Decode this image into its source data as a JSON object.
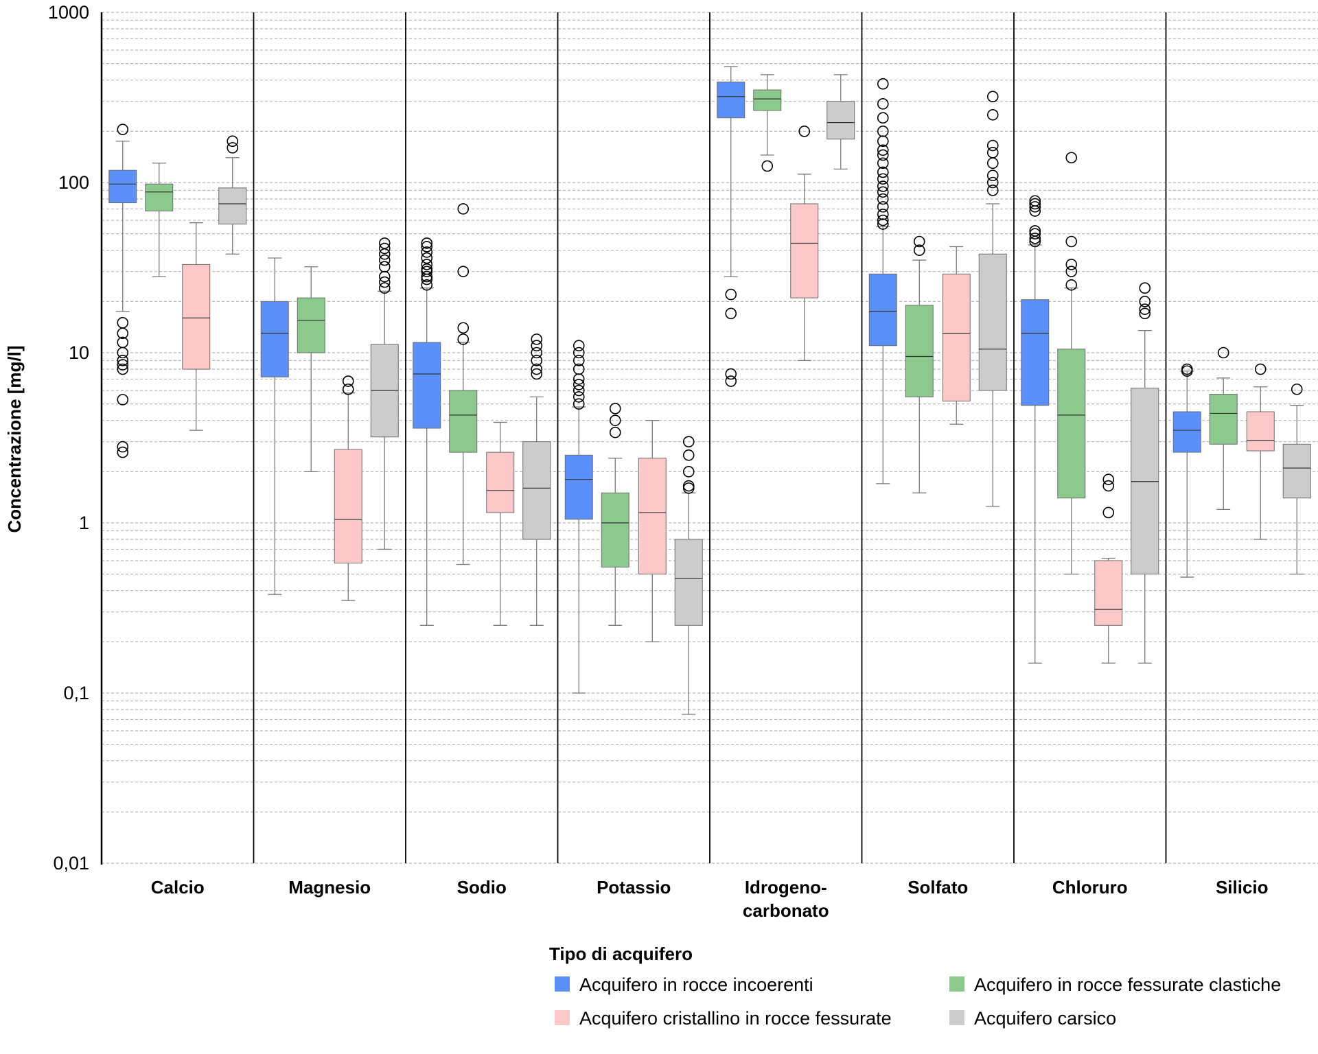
{
  "chart_data": {
    "type": "box",
    "ylabel": "Concentrazione [mg/l]",
    "yscale": "log",
    "ylim": [
      0.01,
      1000
    ],
    "yticks": [
      {
        "value": 1000,
        "label": "1000"
      },
      {
        "value": 100,
        "label": "100"
      },
      {
        "value": 10,
        "label": "10"
      },
      {
        "value": 1,
        "label": "1"
      },
      {
        "value": 0.1,
        "label": "0,1"
      },
      {
        "value": 0.01,
        "label": "0,01"
      }
    ],
    "grid": "dashed minor gridlines",
    "categories": [
      {
        "lines": [
          "Calcio"
        ]
      },
      {
        "lines": [
          "Magnesio"
        ]
      },
      {
        "lines": [
          "Sodio"
        ]
      },
      {
        "lines": [
          "Potassio"
        ]
      },
      {
        "lines": [
          "Idrogeno-",
          "carbonato"
        ]
      },
      {
        "lines": [
          "Solfato"
        ]
      },
      {
        "lines": [
          "Chloruro"
        ]
      },
      {
        "lines": [
          "Silicio"
        ]
      }
    ],
    "legend": {
      "title": "Tipo di acquifero",
      "placement": "bottom-center"
    },
    "series": [
      {
        "name": "Acquifero in rocce incoerenti",
        "color": "#5b8ff9",
        "boxes": [
          {
            "whisker_low": 17.5,
            "q1": 76,
            "median": 98,
            "q3": 118,
            "whisker_high": 175,
            "outliers": [
              205,
              15,
              13,
              11.5,
              10,
              9,
              8.5,
              8,
              5.3,
              2.8,
              2.6
            ]
          },
          {
            "whisker_low": 0.38,
            "q1": 7.2,
            "median": 13,
            "q3": 20,
            "whisker_high": 36,
            "outliers": []
          },
          {
            "whisker_low": 0.25,
            "q1": 3.6,
            "median": 7.5,
            "q3": 11.5,
            "whisker_high": 24,
            "outliers": [
              44,
              42,
              39,
              36,
              33,
              31,
              30,
              28,
              27,
              25
            ]
          },
          {
            "whisker_low": 0.1,
            "q1": 1.05,
            "median": 1.8,
            "q3": 2.5,
            "whisker_high": 4.8,
            "outliers": [
              11,
              10,
              9,
              8,
              7,
              6.5,
              6,
              5.5,
              5
            ]
          },
          {
            "whisker_low": 28,
            "q1": 240,
            "median": 320,
            "q3": 390,
            "whisker_high": 480,
            "outliers": [
              22,
              17,
              7.5,
              6.8
            ]
          },
          {
            "whisker_low": 1.7,
            "q1": 11,
            "median": 17.5,
            "q3": 29,
            "whisker_high": 55,
            "outliers": [
              380,
              290,
              240,
              200,
              175,
              155,
              145,
              130,
              115,
              105,
              95,
              88,
              80,
              72,
              65,
              60,
              57
            ]
          },
          {
            "whisker_low": 0.15,
            "q1": 4.9,
            "median": 13,
            "q3": 20.5,
            "whisker_high": 43,
            "outliers": [
              78,
              75,
              72,
              68,
              52,
              50,
              47,
              45
            ]
          },
          {
            "whisker_low": 0.48,
            "q1": 2.6,
            "median": 3.5,
            "q3": 4.5,
            "whisker_high": 7.8,
            "outliers": [
              8,
              7.8
            ]
          }
        ]
      },
      {
        "name": "Acquifero in rocce fessurate clastiche",
        "color": "#8cc98c",
        "boxes": [
          {
            "whisker_low": 28,
            "q1": 68,
            "median": 88,
            "q3": 98,
            "whisker_high": 130,
            "outliers": []
          },
          {
            "whisker_low": 2,
            "q1": 10,
            "median": 15.5,
            "q3": 21,
            "whisker_high": 32,
            "outliers": []
          },
          {
            "whisker_low": 0.57,
            "q1": 2.6,
            "median": 4.3,
            "q3": 6,
            "whisker_high": 11.5,
            "outliers": [
              70,
              30,
              14,
              12
            ]
          },
          {
            "whisker_low": 0.25,
            "q1": 0.55,
            "median": 1,
            "q3": 1.5,
            "whisker_high": 2.4,
            "outliers": [
              4.7,
              4,
              3.4
            ]
          },
          {
            "whisker_low": 145,
            "q1": 265,
            "median": 310,
            "q3": 350,
            "whisker_high": 430,
            "outliers": [
              125
            ]
          },
          {
            "whisker_low": 1.5,
            "q1": 5.5,
            "median": 9.5,
            "q3": 19,
            "whisker_high": 35,
            "outliers": [
              45,
              40
            ]
          },
          {
            "whisker_low": 0.5,
            "q1": 1.4,
            "median": 4.3,
            "q3": 10.5,
            "whisker_high": 24,
            "outliers": [
              140,
              45,
              33,
              30,
              25
            ]
          },
          {
            "whisker_low": 1.2,
            "q1": 2.9,
            "median": 4.4,
            "q3": 5.7,
            "whisker_high": 7.1,
            "outliers": [
              10
            ]
          }
        ]
      },
      {
        "name": "Acquifero cristallino in rocce fessurate",
        "color": "#fcc8c8",
        "boxes": [
          {
            "whisker_low": 3.5,
            "q1": 8,
            "median": 16,
            "q3": 33,
            "whisker_high": 58,
            "outliers": []
          },
          {
            "whisker_low": 0.35,
            "q1": 0.58,
            "median": 1.05,
            "q3": 2.7,
            "whisker_high": 5.8,
            "outliers": [
              6.8,
              6.1
            ]
          },
          {
            "whisker_low": 0.25,
            "q1": 1.15,
            "median": 1.55,
            "q3": 2.6,
            "whisker_high": 3.9,
            "outliers": []
          },
          {
            "whisker_low": 0.2,
            "q1": 0.5,
            "median": 1.15,
            "q3": 2.4,
            "whisker_high": 4,
            "outliers": []
          },
          {
            "whisker_low": 9,
            "q1": 21,
            "median": 44,
            "q3": 75,
            "whisker_high": 112,
            "outliers": [
              200
            ]
          },
          {
            "whisker_low": 3.8,
            "q1": 5.2,
            "median": 13,
            "q3": 29,
            "whisker_high": 42,
            "outliers": []
          },
          {
            "whisker_low": 0.15,
            "q1": 0.25,
            "median": 0.31,
            "q3": 0.6,
            "whisker_high": 0.62,
            "outliers": [
              1.8,
              1.65,
              1.15
            ]
          },
          {
            "whisker_low": 0.8,
            "q1": 2.65,
            "median": 3.05,
            "q3": 4.5,
            "whisker_high": 6.3,
            "outliers": [
              8
            ]
          }
        ]
      },
      {
        "name": "Acquifero carsico",
        "color": "#cccccc",
        "boxes": [
          {
            "whisker_low": 38,
            "q1": 57,
            "median": 75,
            "q3": 93,
            "whisker_high": 140,
            "outliers": [
              175,
              160
            ]
          },
          {
            "whisker_low": 0.7,
            "q1": 3.2,
            "median": 6,
            "q3": 11.2,
            "whisker_high": 23,
            "outliers": [
              44,
              41,
              38,
              35,
              32,
              28,
              26,
              24
            ]
          },
          {
            "whisker_low": 0.25,
            "q1": 0.8,
            "median": 1.6,
            "q3": 3,
            "whisker_high": 5.5,
            "outliers": [
              12,
              11,
              10,
              9,
              8,
              7.5
            ]
          },
          {
            "whisker_low": 0.075,
            "q1": 0.25,
            "median": 0.47,
            "q3": 0.8,
            "whisker_high": 1.5,
            "outliers": [
              3,
              2.5,
              2,
              1.65,
              1.6
            ]
          },
          {
            "whisker_low": 120,
            "q1": 180,
            "median": 225,
            "q3": 300,
            "whisker_high": 430,
            "outliers": []
          },
          {
            "whisker_low": 1.25,
            "q1": 6,
            "median": 10.5,
            "q3": 38,
            "whisker_high": 75,
            "outliers": [
              320,
              250,
              165,
              150,
              130,
              110,
              100,
              90
            ]
          },
          {
            "whisker_low": 0.15,
            "q1": 0.5,
            "median": 1.75,
            "q3": 6.2,
            "whisker_high": 13.5,
            "outliers": [
              24,
              20,
              18,
              17
            ]
          },
          {
            "whisker_low": 0.5,
            "q1": 1.4,
            "median": 2.1,
            "q3": 2.9,
            "whisker_high": 4.9,
            "outliers": [
              6.1
            ]
          }
        ]
      }
    ]
  }
}
